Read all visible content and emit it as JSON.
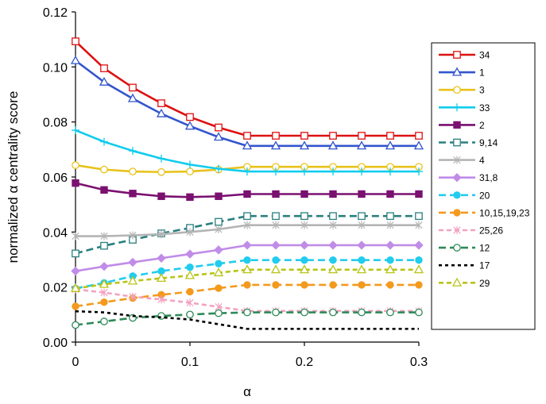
{
  "chart_data": {
    "type": "line",
    "title": "",
    "xlabel": "α",
    "ylabel": "normalized α centrality score",
    "xlim": [
      0,
      0.3
    ],
    "ylim": [
      0,
      0.12
    ],
    "xticks": [
      0,
      0.1,
      0.2,
      0.3
    ],
    "xtick_labels": [
      "0",
      "0.1",
      "0.2",
      "0.3"
    ],
    "yticks": [
      0,
      0.02,
      0.04,
      0.06,
      0.08,
      0.1,
      0.12
    ],
    "ytick_labels": [
      "0.00",
      "0.02",
      "0.04",
      "0.06",
      "0.08",
      "0.10",
      "0.12"
    ],
    "grid": false,
    "legend_position": "right",
    "x": [
      0,
      0.025,
      0.05,
      0.075,
      0.1,
      0.125,
      0.15,
      0.175,
      0.2,
      0.225,
      0.25,
      0.275,
      0.3
    ],
    "series": [
      {
        "name": "34",
        "color": "#dd1111",
        "dash": "solid",
        "marker": "square-open",
        "values": [
          0.1093,
          0.0995,
          0.0925,
          0.0868,
          0.0818,
          0.078,
          0.075,
          0.075,
          0.075,
          0.075,
          0.075,
          0.075,
          0.075
        ]
      },
      {
        "name": "1",
        "color": "#3355cc",
        "dash": "solid",
        "marker": "triangle-open",
        "values": [
          0.1023,
          0.0945,
          0.0885,
          0.083,
          0.0785,
          0.0745,
          0.0713,
          0.0713,
          0.0713,
          0.0713,
          0.0713,
          0.0713,
          0.0713
        ]
      },
      {
        "name": "3",
        "color": "#e8c21a",
        "dash": "solid",
        "marker": "circle-open",
        "values": [
          0.0643,
          0.0627,
          0.062,
          0.0618,
          0.062,
          0.0627,
          0.0637,
          0.0637,
          0.0637,
          0.0637,
          0.0637,
          0.0637,
          0.0637
        ]
      },
      {
        "name": "33",
        "color": "#11ccee",
        "dash": "solid",
        "marker": "plus",
        "values": [
          0.077,
          0.0728,
          0.0695,
          0.0667,
          0.0645,
          0.063,
          0.062,
          0.062,
          0.062,
          0.062,
          0.062,
          0.062,
          0.062
        ]
      },
      {
        "name": "2",
        "color": "#7a1070",
        "dash": "solid",
        "marker": "square-filled",
        "values": [
          0.0578,
          0.0553,
          0.054,
          0.053,
          0.0527,
          0.053,
          0.0538,
          0.0538,
          0.0538,
          0.0538,
          0.0538,
          0.0538,
          0.0538
        ]
      },
      {
        "name": "9,14",
        "color": "#2a7f7f",
        "dash": "long",
        "marker": "square-open",
        "values": [
          0.0322,
          0.035,
          0.0372,
          0.0395,
          0.0415,
          0.0437,
          0.0458,
          0.0458,
          0.0458,
          0.0458,
          0.0458,
          0.0458,
          0.0458
        ]
      },
      {
        "name": "4",
        "color": "#b4b4b4",
        "dash": "solid",
        "marker": "asterisk",
        "values": [
          0.0385,
          0.0385,
          0.0388,
          0.0392,
          0.04,
          0.041,
          0.0425,
          0.0425,
          0.0425,
          0.0425,
          0.0425,
          0.0425,
          0.0425
        ]
      },
      {
        "name": "31,8",
        "color": "#c08ce8",
        "dash": "solid",
        "marker": "diamond-filled",
        "values": [
          0.0258,
          0.0275,
          0.029,
          0.0305,
          0.032,
          0.0335,
          0.0352,
          0.0352,
          0.0352,
          0.0352,
          0.0352,
          0.0352,
          0.0352
        ]
      },
      {
        "name": "20",
        "color": "#22ccee",
        "dash": "long",
        "marker": "circle-filled",
        "values": [
          0.0195,
          0.0215,
          0.024,
          0.0258,
          0.0272,
          0.0285,
          0.0298,
          0.0298,
          0.0298,
          0.0298,
          0.0298,
          0.0298,
          0.0298
        ]
      },
      {
        "name": "10,15,19,23",
        "color": "#f39a1e",
        "dash": "long",
        "marker": "circle-filled",
        "values": [
          0.013,
          0.0145,
          0.016,
          0.0172,
          0.0183,
          0.0196,
          0.0208,
          0.0208,
          0.0208,
          0.0208,
          0.0208,
          0.0208,
          0.0208
        ]
      },
      {
        "name": "25,26",
        "color": "#f2a2c0",
        "dash": "medium",
        "marker": "asterisk",
        "values": [
          0.0192,
          0.018,
          0.0165,
          0.0155,
          0.0143,
          0.0128,
          0.0113,
          0.0113,
          0.0113,
          0.0113,
          0.0113,
          0.0113,
          0.0113
        ]
      },
      {
        "name": "12",
        "color": "#2e8a58",
        "dash": "long",
        "marker": "circle-open",
        "values": [
          0.0062,
          0.0075,
          0.0088,
          0.0095,
          0.01,
          0.0105,
          0.0108,
          0.0108,
          0.0108,
          0.0108,
          0.0108,
          0.0108,
          0.0108
        ]
      },
      {
        "name": "17",
        "color": "#000000",
        "dash": "short",
        "marker": "none",
        "values": [
          0.0112,
          0.0108,
          0.0095,
          0.009,
          0.0082,
          0.0065,
          0.0048,
          0.0048,
          0.0048,
          0.0048,
          0.0048,
          0.0048,
          0.0048
        ]
      },
      {
        "name": "29",
        "color": "#b8c416",
        "dash": "medium",
        "marker": "triangle-open",
        "values": [
          0.0195,
          0.021,
          0.0222,
          0.0232,
          0.0242,
          0.0252,
          0.0263,
          0.0263,
          0.0263,
          0.0263,
          0.0263,
          0.0263,
          0.0263
        ]
      }
    ]
  }
}
